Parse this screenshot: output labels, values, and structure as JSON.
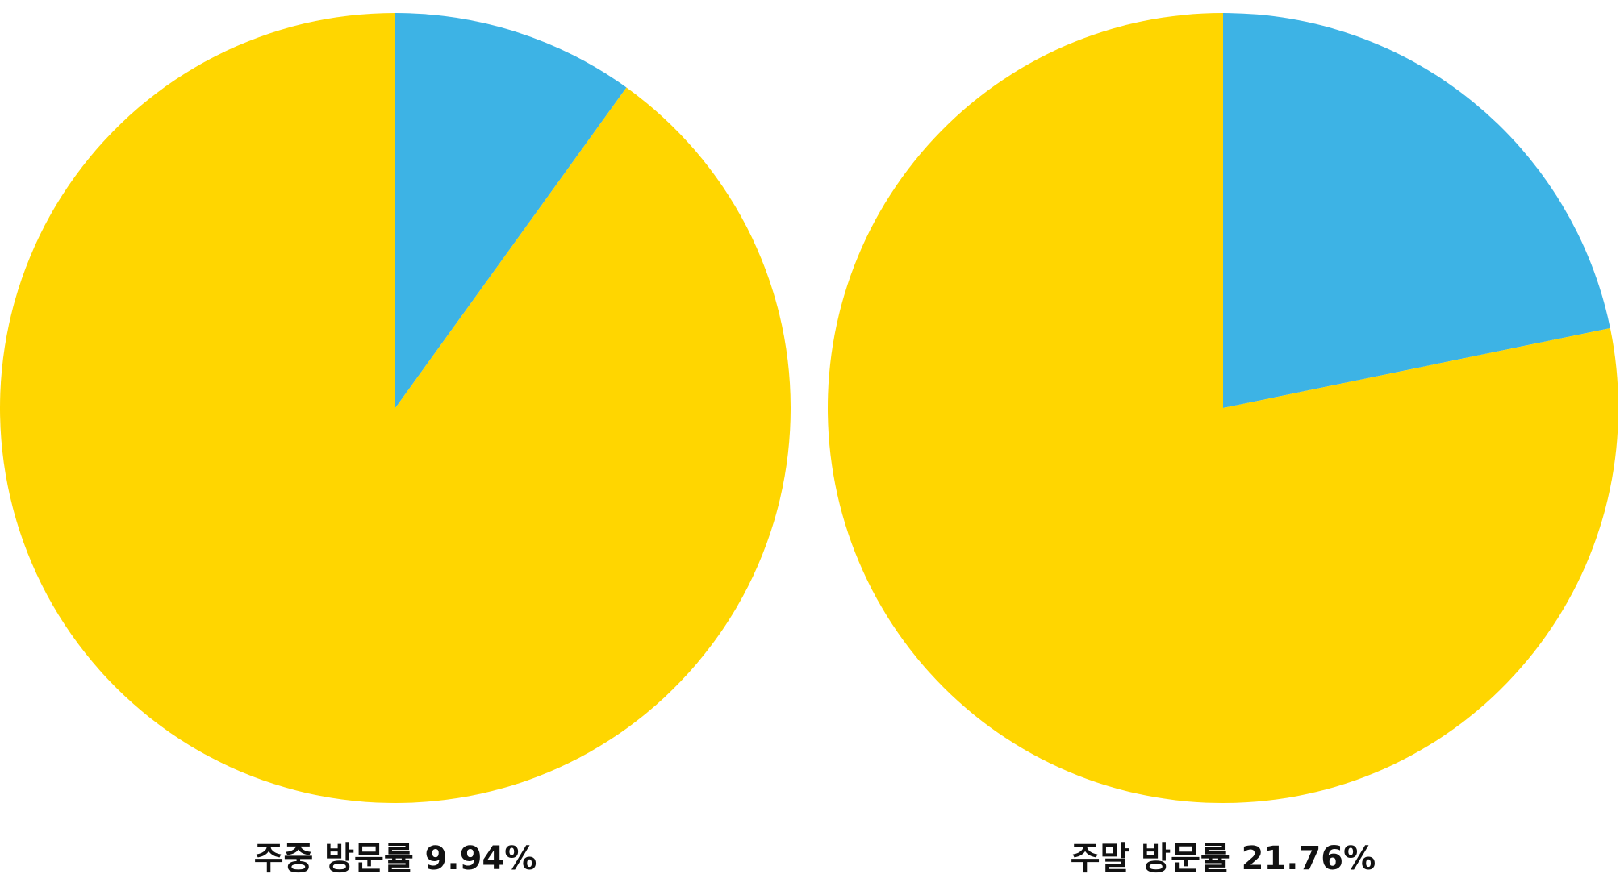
{
  "colors": {
    "highlight": "#3db3e5",
    "remainder": "#ffd600",
    "background": "#ffffff",
    "text": "#111111"
  },
  "chart_data": [
    {
      "type": "pie",
      "caption": "주중 방문률 9.94%",
      "slices": [
        {
          "value": 9.94,
          "color": "#3db3e5"
        },
        {
          "value": 90.06,
          "color": "#ffd600"
        }
      ]
    },
    {
      "type": "pie",
      "caption": "주말 방문률 21.76%",
      "slices": [
        {
          "value": 21.76,
          "color": "#3db3e5"
        },
        {
          "value": 78.24,
          "color": "#ffd600"
        }
      ]
    }
  ]
}
